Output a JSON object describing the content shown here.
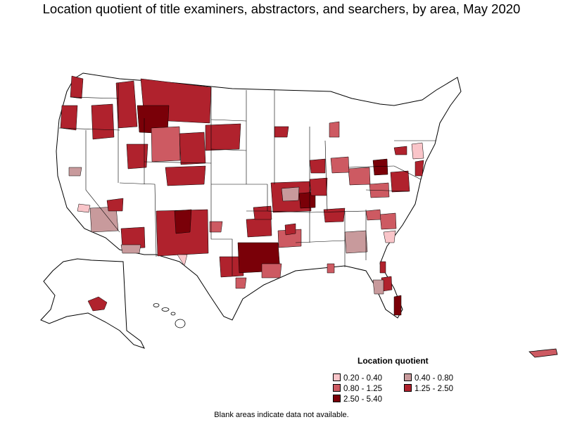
{
  "title": "Location quotient of title examiners, abstractors, and searchers, by area, May 2020",
  "legend": {
    "title": "Location quotient",
    "items": [
      {
        "label": "0.20 - 0.40",
        "color": "#f9c5c9"
      },
      {
        "label": "0.40 - 0.80",
        "color": "#c89a9c"
      },
      {
        "label": "0.80 - 1.25",
        "color": "#cd5a62"
      },
      {
        "label": "1.25 - 2.50",
        "color": "#b0222d"
      },
      {
        "label": "2.50 - 5.40",
        "color": "#7a0008"
      }
    ]
  },
  "footnote": "Blank areas indicate data not available.",
  "colors": {
    "outline": "#000000",
    "land": "#ffffff",
    "no_data": "#ffffff"
  }
}
